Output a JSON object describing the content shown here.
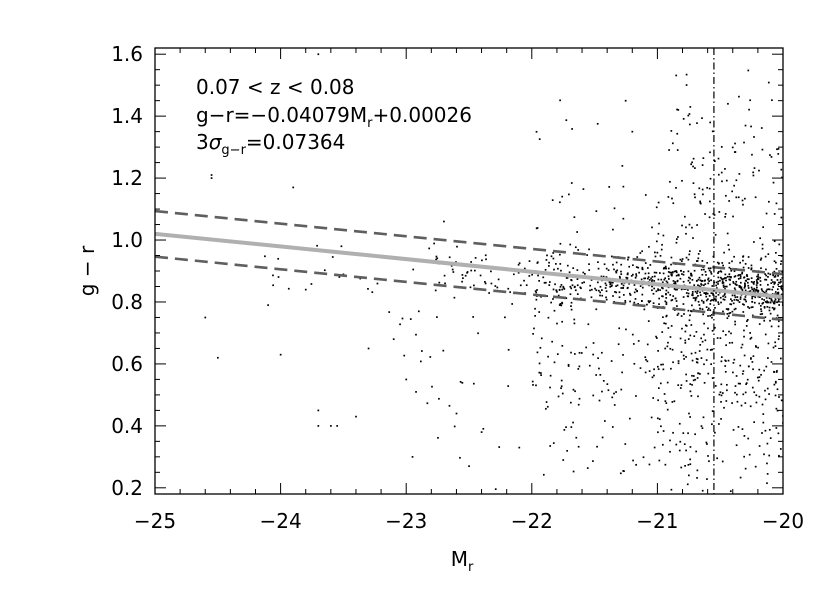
{
  "chart_data": {
    "type": "scatter",
    "xlabel": "M",
    "xlabel_sub": "r",
    "ylabel": "g − r",
    "xlim": [
      -25,
      -20
    ],
    "ylim": [
      0.18,
      1.62
    ],
    "x_ticks": [
      -25,
      -24,
      -23,
      -22,
      -21,
      -20
    ],
    "x_tick_labels": [
      "−25",
      "−24",
      "−23",
      "−22",
      "−21",
      "−20"
    ],
    "y_ticks": [
      0.2,
      0.4,
      0.6,
      0.8,
      1.0,
      1.2,
      1.4,
      1.6
    ],
    "y_tick_labels": [
      "0.2",
      "0.4",
      "0.6",
      "0.8",
      "1.0",
      "1.2",
      "1.4",
      "1.6"
    ],
    "grid": false,
    "annotations": {
      "redshift_range": "0.07 < z < 0.08",
      "fit_prefix": "g−r=−0.04079M",
      "fit_sub": "r",
      "fit_suffix": "+0.00026",
      "sigma_prefix": "3",
      "sigma_symbol": "σ",
      "sigma_sub": "g−r",
      "sigma_suffix": "=0.07364"
    },
    "fit_line": {
      "slope": -0.04079,
      "intercept": 0.00026,
      "color": "#b0b0b0"
    },
    "bounds": {
      "width": 0.07364,
      "color": "#5f5f5f"
    },
    "vertical_line": {
      "x": -20.55,
      "style": "dash-dot",
      "color": "#000000"
    },
    "scatter": {
      "marker_color": "#000000",
      "note": "field galaxies; dense red sequence around g-r 0.85 near M_r -21 to -20",
      "clusters": [
        {
          "x_range": [
            -20.0,
            -20.6
          ],
          "y_center": 0.84,
          "y_spread": 0.04,
          "count": 320
        },
        {
          "x_range": [
            -20.6,
            -21.3
          ],
          "y_center": 0.86,
          "y_spread": 0.04,
          "count": 260
        },
        {
          "x_range": [
            -21.3,
            -22.0
          ],
          "y_center": 0.87,
          "y_spread": 0.04,
          "count": 130
        },
        {
          "x_range": [
            -22.0,
            -22.8
          ],
          "y_center": 0.89,
          "y_spread": 0.04,
          "count": 55
        },
        {
          "x_range": [
            -22.8,
            -24.2
          ],
          "y_center": 0.91,
          "y_spread": 0.04,
          "count": 18
        },
        {
          "x_range": [
            -20.0,
            -21.0
          ],
          "y_center": 0.62,
          "y_spread": 0.22,
          "count": 420
        },
        {
          "x_range": [
            -21.0,
            -22.0
          ],
          "y_center": 0.62,
          "y_spread": 0.2,
          "count": 160
        },
        {
          "x_range": [
            -22.0,
            -23.2
          ],
          "y_center": 0.62,
          "y_spread": 0.18,
          "count": 35
        },
        {
          "x_range": [
            -20.0,
            -20.9
          ],
          "y_center": 1.15,
          "y_spread": 0.2,
          "count": 140
        },
        {
          "x_range": [
            -20.9,
            -22.0
          ],
          "y_center": 1.1,
          "y_spread": 0.18,
          "count": 40
        }
      ],
      "sparse_points": [
        [
          -24.55,
          1.2
        ],
        [
          -24.55,
          1.21
        ],
        [
          -24.5,
          0.62
        ],
        [
          -24.6,
          0.75
        ],
        [
          -23.9,
          1.17
        ],
        [
          -23.7,
          1.6
        ],
        [
          -23.7,
          0.4
        ],
        [
          -23.6,
          0.4
        ],
        [
          -23.55,
          0.4
        ],
        [
          -23.7,
          0.45
        ],
        [
          -23.1,
          0.68
        ],
        [
          -22.9,
          0.77
        ],
        [
          -23.4,
          0.43
        ],
        [
          -22.6,
          0.44
        ],
        [
          -22.4,
          0.38
        ],
        [
          -23.0,
          0.55
        ],
        [
          -22.7,
          1.06
        ],
        [
          -21.2,
          1.35
        ],
        [
          -22.1,
          0.33
        ],
        [
          -24.1,
          0.79
        ],
        [
          -23.3,
          0.65
        ],
        [
          -22.95,
          0.3
        ],
        [
          -22.5,
          0.27
        ],
        [
          -23.8,
          0.84
        ],
        [
          -24.0,
          0.63
        ]
      ]
    }
  }
}
